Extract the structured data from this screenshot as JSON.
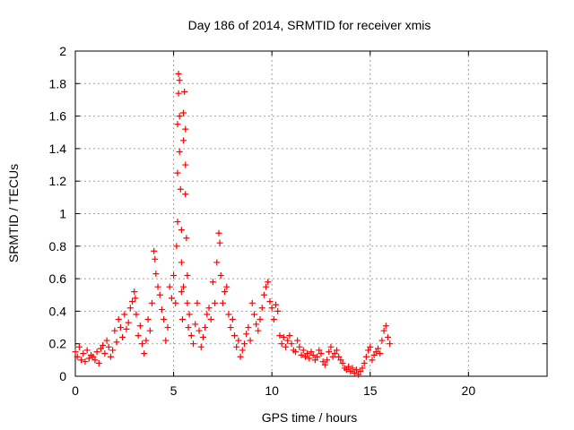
{
  "chart_data": {
    "type": "scatter",
    "title": "Day 186 of 2014, SRMTID for receiver xmis",
    "xlabel": "GPS time / hours",
    "ylabel": "SRMTID / TECUs",
    "xlim": [
      0,
      24
    ],
    "ylim": [
      0,
      2
    ],
    "xticks": [
      0,
      5,
      10,
      15,
      20
    ],
    "xtick_labels": [
      "0",
      "5",
      "10",
      "15",
      "20"
    ],
    "yticks": [
      0,
      0.2,
      0.4,
      0.6,
      0.8,
      1,
      1.2,
      1.4,
      1.6,
      1.8,
      2
    ],
    "ytick_labels": [
      "0",
      "0.2",
      "0.4",
      "0.6",
      "0.8",
      "1",
      "1.2",
      "1.4",
      "1.6",
      "1.8",
      "2"
    ],
    "grid": true,
    "marker": "+",
    "color": "#ff0000",
    "series": [
      {
        "name": "SRMTID",
        "x": [
          0.0,
          0.1,
          0.2,
          0.3,
          0.4,
          0.5,
          0.6,
          0.7,
          0.8,
          0.9,
          1.0,
          1.1,
          1.2,
          1.3,
          1.4,
          1.5,
          1.6,
          1.7,
          1.8,
          1.9,
          2.0,
          2.1,
          2.2,
          2.3,
          2.4,
          2.5,
          2.6,
          2.7,
          2.8,
          2.9,
          3.0,
          3.05,
          3.1,
          3.2,
          3.3,
          3.4,
          3.5,
          3.6,
          3.7,
          3.8,
          3.9,
          4.0,
          4.05,
          4.1,
          4.2,
          4.3,
          4.4,
          4.5,
          4.6,
          4.7,
          4.8,
          4.9,
          5.0,
          5.1,
          5.15,
          5.2,
          5.2,
          5.2,
          5.25,
          5.25,
          5.3,
          5.3,
          5.3,
          5.35,
          5.4,
          5.4,
          5.4,
          5.45,
          5.5,
          5.5,
          5.5,
          5.55,
          5.6,
          5.6,
          5.6,
          5.65,
          5.7,
          5.7,
          5.75,
          5.8,
          5.9,
          6.0,
          6.1,
          6.2,
          6.3,
          6.4,
          6.5,
          6.6,
          6.7,
          6.8,
          6.9,
          7.0,
          7.1,
          7.2,
          7.3,
          7.35,
          7.4,
          7.5,
          7.6,
          7.7,
          7.8,
          7.9,
          8.0,
          8.1,
          8.2,
          8.3,
          8.4,
          8.5,
          8.6,
          8.7,
          8.8,
          8.9,
          9.0,
          9.1,
          9.2,
          9.3,
          9.4,
          9.5,
          9.6,
          9.7,
          9.8,
          9.9,
          10.0,
          10.1,
          10.2,
          10.3,
          10.4,
          10.5,
          10.6,
          10.7,
          10.8,
          10.9,
          11.0,
          11.1,
          11.2,
          11.3,
          11.4,
          11.5,
          11.6,
          11.7,
          11.8,
          11.9,
          12.0,
          12.1,
          12.2,
          12.3,
          12.4,
          12.5,
          12.6,
          12.7,
          12.8,
          12.9,
          13.0,
          13.1,
          13.2,
          13.3,
          13.4,
          13.5,
          13.6,
          13.7,
          13.8,
          13.9,
          14.0,
          14.1,
          14.2,
          14.3,
          14.4,
          14.5,
          14.6,
          14.7,
          14.8,
          14.9,
          15.0,
          15.1,
          15.2,
          15.3,
          15.4,
          15.5,
          15.6,
          15.7,
          15.8,
          15.9,
          16.0
        ],
        "y": [
          0.15,
          0.12,
          0.18,
          0.1,
          0.14,
          0.09,
          0.16,
          0.11,
          0.13,
          0.12,
          0.1,
          0.15,
          0.08,
          0.17,
          0.19,
          0.14,
          0.22,
          0.18,
          0.12,
          0.16,
          0.28,
          0.21,
          0.35,
          0.3,
          0.24,
          0.38,
          0.29,
          0.33,
          0.42,
          0.46,
          0.52,
          0.48,
          0.38,
          0.25,
          0.31,
          0.2,
          0.14,
          0.22,
          0.35,
          0.28,
          0.45,
          0.77,
          0.72,
          0.63,
          0.55,
          0.5,
          0.41,
          0.35,
          0.22,
          0.3,
          0.55,
          0.48,
          0.62,
          0.45,
          0.8,
          0.95,
          1.25,
          1.55,
          1.74,
          1.86,
          1.82,
          1.6,
          1.38,
          1.15,
          0.9,
          0.7,
          0.52,
          0.35,
          0.55,
          1.45,
          1.62,
          1.75,
          1.52,
          1.3,
          1.12,
          0.85,
          0.62,
          0.45,
          0.3,
          0.38,
          0.25,
          0.2,
          0.32,
          0.45,
          0.28,
          0.18,
          0.24,
          0.3,
          0.38,
          0.42,
          0.35,
          0.58,
          0.45,
          0.7,
          0.88,
          0.82,
          0.62,
          0.45,
          0.52,
          0.55,
          0.38,
          0.3,
          0.35,
          0.25,
          0.18,
          0.22,
          0.12,
          0.16,
          0.2,
          0.26,
          0.3,
          0.22,
          0.45,
          0.38,
          0.32,
          0.28,
          0.35,
          0.42,
          0.5,
          0.55,
          0.58,
          0.46,
          0.42,
          0.35,
          0.44,
          0.4,
          0.25,
          0.2,
          0.24,
          0.18,
          0.22,
          0.25,
          0.2,
          0.16,
          0.15,
          0.22,
          0.18,
          0.13,
          0.16,
          0.12,
          0.14,
          0.11,
          0.15,
          0.13,
          0.1,
          0.12,
          0.16,
          0.14,
          0.09,
          0.07,
          0.1,
          0.15,
          0.18,
          0.12,
          0.14,
          0.16,
          0.12,
          0.1,
          0.08,
          0.05,
          0.04,
          0.06,
          0.03,
          0.05,
          0.02,
          0.04,
          0.01,
          0.03,
          0.05,
          0.08,
          0.12,
          0.16,
          0.18,
          0.1,
          0.13,
          0.15,
          0.17,
          0.14,
          0.22,
          0.28,
          0.31,
          0.24,
          0.2
        ]
      }
    ]
  }
}
